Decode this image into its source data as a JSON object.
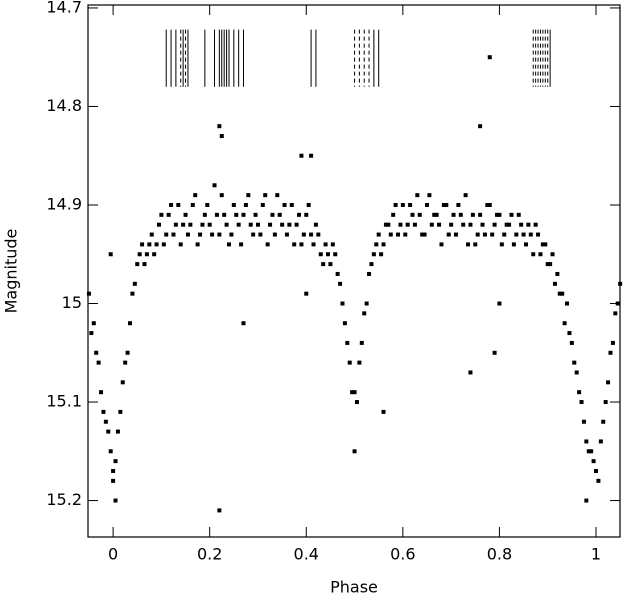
{
  "chart_data": {
    "type": "scatter",
    "xlabel": "Phase",
    "ylabel": "Magnitude",
    "xlim": [
      -0.052,
      1.0497
    ],
    "ylim": [
      15.237,
      14.697
    ],
    "xticks": [
      0,
      0.2,
      0.4,
      0.6,
      0.8,
      1
    ],
    "yticks": [
      14.7,
      14.8,
      14.9,
      15.0,
      15.1,
      15.2
    ],
    "series": [
      {
        "color": "#000000",
        "x": [
          -0.05,
          -0.04,
          -0.03,
          -0.02,
          -0.01,
          0,
          0.01,
          0.02,
          0.03,
          0.04,
          0.05,
          0.06,
          0.07,
          0.08,
          0.09,
          0.1,
          0.11,
          0.12,
          0.13,
          0.14,
          0.15,
          0.16,
          0.17,
          0.18,
          0.19,
          0.2,
          0.21,
          0.22,
          0.23,
          0.24,
          0.25,
          0.26,
          0.27,
          0.28,
          0.29,
          0.3,
          0.31,
          0.32,
          0.33,
          0.34,
          0.35,
          0.36,
          0.37,
          0.38,
          0.39,
          0.4,
          0.41,
          0.42,
          0.43,
          0.44,
          0.45,
          0.46,
          0.47,
          0.48,
          0.49,
          0.5,
          0.51,
          0.52,
          0.53,
          0.54,
          0.55,
          0.56,
          0.57,
          0.58,
          0.59,
          0.6,
          0.61,
          0.62,
          0.63,
          0.64,
          0.65,
          0.66,
          0.67,
          0.68,
          0.69,
          0.7,
          0.71,
          0.72,
          0.73,
          0.74,
          0.75,
          0.76,
          0.77,
          0.78,
          0.79,
          0.8,
          0.81,
          0.82,
          0.83,
          0.84,
          0.85,
          0.86,
          0.87,
          0.88,
          0.89,
          0.9,
          0.91,
          0.92,
          0.93,
          0.94,
          0.95,
          0.96,
          0.97,
          0.98,
          0.99,
          1,
          1.01,
          1.02,
          1.03,
          1.04,
          1.05,
          -0.045,
          -0.035,
          -0.025,
          -0.015,
          -0.005,
          0.005,
          0.015,
          0.025,
          0.035,
          0.045,
          0.055,
          0.065,
          0.075,
          0.085,
          0.095,
          0.105,
          0.115,
          0.125,
          0.135,
          0.145,
          0.155,
          0.165,
          0.175,
          0.185,
          0.195,
          0.205,
          0.215,
          0.225,
          0.235,
          0.245,
          0.255,
          0.265,
          0.275,
          0.285,
          0.295,
          0.305,
          0.315,
          0.325,
          0.335,
          0.345,
          0.355,
          0.365,
          0.375,
          0.385,
          0.395,
          0.405,
          0.415,
          0.425,
          0.435,
          0.445,
          0.455,
          0.465,
          0.475,
          0.485,
          0.495,
          0.505,
          0.515,
          0.525,
          0.535,
          0.545,
          0.555,
          0.565,
          0.575,
          0.585,
          0.595,
          0.605,
          0.615,
          0.625,
          0.635,
          0.645,
          0.655,
          0.665,
          0.675,
          0.685,
          0.695,
          0.705,
          0.715,
          0.725,
          0.735,
          0.745,
          0.755,
          0.765,
          0.775,
          0.785,
          0.795,
          0.805,
          0.815,
          0.825,
          0.835,
          0.845,
          0.855,
          0.865,
          0.875,
          0.885,
          0.895,
          0.905,
          0.915,
          0.925,
          0.935,
          0.945,
          0.955,
          0.965,
          0.975,
          0.985,
          0.995,
          1.005,
          1.015,
          1.025,
          1.035,
          1.045,
          0.22,
          0.225,
          0.22,
          0.39,
          0.41,
          0.78,
          0.76,
          0.98,
          0.005,
          0.74,
          0.79,
          0.56,
          0.27,
          0.5,
          -0.005,
          0.4,
          0.8,
          0.0
        ],
        "y": [
          14.99,
          15.02,
          15.06,
          15.11,
          15.13,
          15.17,
          15.13,
          15.08,
          15.05,
          14.99,
          14.96,
          14.94,
          14.95,
          14.93,
          14.94,
          14.91,
          14.93,
          14.9,
          14.92,
          14.94,
          14.91,
          14.92,
          14.89,
          14.93,
          14.91,
          14.92,
          14.88,
          14.93,
          14.91,
          14.94,
          14.9,
          14.92,
          14.91,
          14.89,
          14.93,
          14.92,
          14.9,
          14.94,
          14.91,
          14.89,
          14.92,
          14.93,
          14.9,
          14.92,
          14.94,
          14.91,
          14.93,
          14.92,
          14.95,
          14.94,
          14.96,
          14.95,
          14.98,
          15.02,
          15.06,
          15.09,
          15.06,
          15.01,
          14.97,
          14.95,
          14.93,
          14.94,
          14.92,
          14.91,
          14.93,
          14.9,
          14.92,
          14.91,
          14.89,
          14.93,
          14.9,
          14.92,
          14.91,
          14.94,
          14.9,
          14.92,
          14.93,
          14.91,
          14.89,
          14.92,
          14.94,
          14.91,
          14.93,
          14.9,
          14.92,
          14.91,
          14.93,
          14.92,
          14.94,
          14.91,
          14.93,
          14.92,
          14.95,
          14.93,
          14.94,
          14.96,
          14.95,
          14.97,
          14.99,
          15.0,
          15.04,
          15.07,
          15.1,
          15.14,
          15.15,
          15.17,
          15.14,
          15.1,
          15.05,
          15.01,
          14.98,
          15.03,
          15.05,
          15.09,
          15.12,
          15.15,
          15.16,
          15.11,
          15.06,
          15.02,
          14.98,
          14.95,
          14.96,
          14.94,
          14.95,
          14.92,
          14.94,
          14.91,
          14.93,
          14.9,
          14.92,
          14.93,
          14.9,
          14.94,
          14.92,
          14.9,
          14.93,
          14.91,
          14.89,
          14.92,
          14.93,
          14.91,
          14.94,
          14.9,
          14.92,
          14.91,
          14.93,
          14.89,
          14.92,
          14.93,
          14.91,
          14.9,
          14.92,
          14.94,
          14.91,
          14.93,
          14.9,
          14.94,
          14.93,
          14.96,
          14.95,
          14.94,
          14.97,
          15.0,
          15.04,
          15.09,
          15.1,
          15.04,
          15.0,
          14.96,
          14.94,
          14.95,
          14.92,
          14.93,
          14.9,
          14.92,
          14.93,
          14.9,
          14.92,
          14.91,
          14.93,
          14.89,
          14.91,
          14.92,
          14.9,
          14.93,
          14.91,
          14.9,
          14.92,
          14.94,
          14.91,
          14.93,
          14.92,
          14.9,
          14.93,
          14.91,
          14.94,
          14.92,
          14.91,
          14.93,
          14.92,
          14.94,
          14.93,
          14.92,
          14.95,
          14.94,
          14.96,
          14.98,
          14.99,
          15.02,
          15.03,
          15.06,
          15.09,
          15.12,
          15.15,
          15.16,
          15.18,
          15.12,
          15.08,
          15.04,
          15.0,
          14.82,
          14.83,
          15.21,
          14.85,
          14.85,
          14.75,
          14.82,
          15.2,
          15.2,
          15.07,
          15.05,
          15.11,
          15.02,
          15.15,
          14.95,
          14.99,
          15.0,
          15.18
        ]
      }
    ],
    "epoch_lines": {
      "y_range": [
        14.722,
        14.78
      ],
      "groups": [
        {
          "style": "solid",
          "x": [
            0.11,
            0.12,
            0.13,
            0.145,
            0.155,
            0.19,
            0.21,
            0.22,
            0.225,
            0.23,
            0.235,
            0.24,
            0.25,
            0.26,
            0.27,
            0.41,
            0.42,
            0.54,
            0.55,
            0.905
          ]
        },
        {
          "style": "dashed",
          "x": [
            0.14,
            0.15,
            0.5,
            0.51,
            0.52,
            0.53,
            0.87,
            0.875,
            0.88,
            0.885,
            0.89,
            0.895,
            0.9
          ]
        }
      ]
    }
  }
}
